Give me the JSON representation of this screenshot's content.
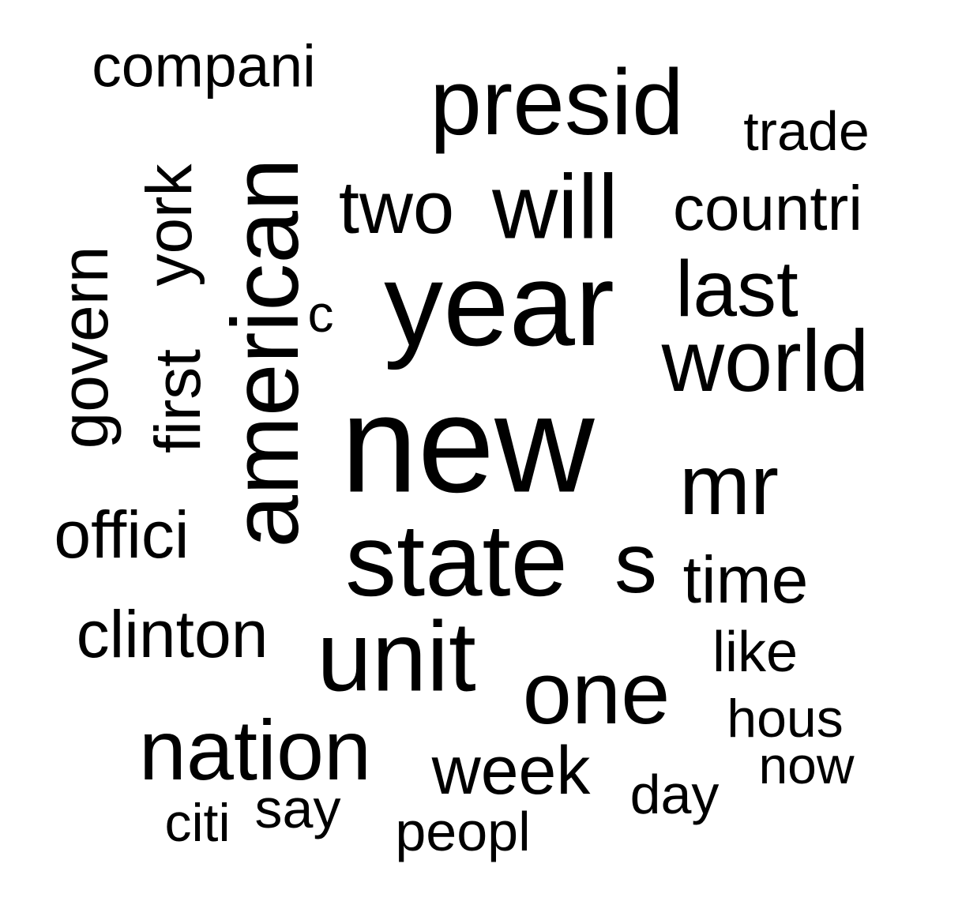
{
  "word_cloud": {
    "text_color": "#000000",
    "background": "#ffffff",
    "words": [
      {
        "id": "new",
        "text": "new"
      },
      {
        "id": "year",
        "text": "year"
      },
      {
        "id": "state",
        "text": "state"
      },
      {
        "id": "american",
        "text": "american"
      },
      {
        "id": "unit",
        "text": "unit"
      },
      {
        "id": "presid",
        "text": "presid"
      },
      {
        "id": "world",
        "text": "world"
      },
      {
        "id": "will",
        "text": "will"
      },
      {
        "id": "one",
        "text": "one"
      },
      {
        "id": "nation",
        "text": "nation"
      },
      {
        "id": "mr",
        "text": "mr"
      },
      {
        "id": "last",
        "text": "last"
      },
      {
        "id": "s",
        "text": "s"
      },
      {
        "id": "two",
        "text": "two"
      },
      {
        "id": "govern",
        "text": "govern"
      },
      {
        "id": "york",
        "text": "york"
      },
      {
        "id": "first",
        "text": "first"
      },
      {
        "id": "clinton",
        "text": "clinton"
      },
      {
        "id": "week",
        "text": "week"
      },
      {
        "id": "countri",
        "text": "countri"
      },
      {
        "id": "time",
        "text": "time"
      },
      {
        "id": "offici",
        "text": "offici"
      },
      {
        "id": "compani",
        "text": "compani"
      },
      {
        "id": "trade",
        "text": "trade"
      },
      {
        "id": "like",
        "text": "like"
      },
      {
        "id": "hous",
        "text": "hous"
      },
      {
        "id": "peopl",
        "text": "peopl"
      },
      {
        "id": "day",
        "text": "day"
      },
      {
        "id": "now",
        "text": "now"
      },
      {
        "id": "citi",
        "text": "citi"
      },
      {
        "id": "say",
        "text": "say"
      },
      {
        "id": "c",
        "text": "c"
      }
    ]
  }
}
